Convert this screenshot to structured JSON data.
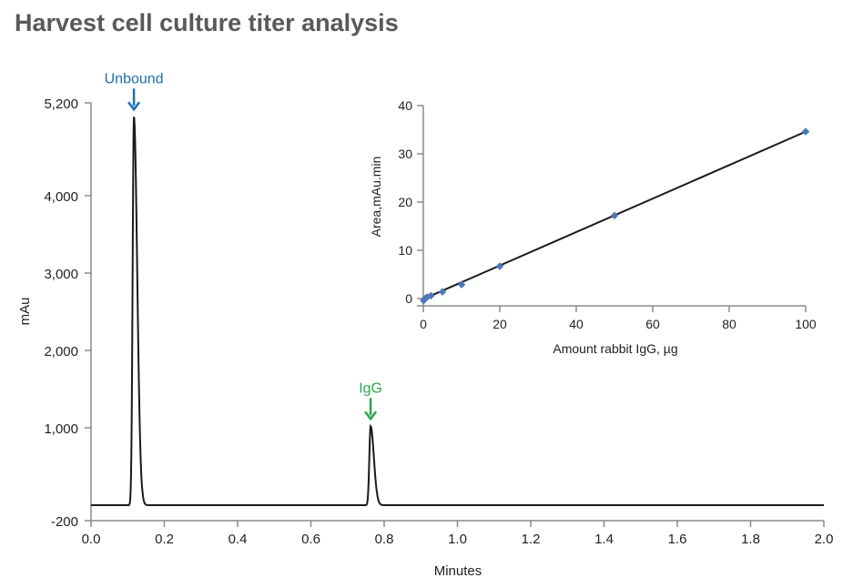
{
  "title": "Harvest cell culture titer analysis",
  "colors": {
    "unbound": "#1f6eb5",
    "igg": "#2aa84a",
    "line": "#1a1a1a",
    "axis": "#8a8a8a",
    "point": "#4a78b8"
  },
  "chart_data": [
    {
      "type": "line",
      "title": "Harvest cell culture titer analysis",
      "xlabel": "Minutes",
      "ylabel": "mAu",
      "xlim": [
        0,
        2
      ],
      "ylim": [
        -200,
        5200
      ],
      "xticks": [
        "0.0",
        "0.2",
        "0.4",
        "0.6",
        "0.8",
        "1.0",
        "1.2",
        "1.4",
        "1.6",
        "1.8",
        "2.0"
      ],
      "xtick_values": [
        0,
        0.2,
        0.4,
        0.6,
        0.8,
        1.0,
        1.2,
        1.4,
        1.6,
        1.8,
        2.0
      ],
      "yticks": [
        "-200",
        "1,000",
        "2,000",
        "3,000",
        "4,000",
        "5,200"
      ],
      "ytick_values": [
        -200,
        1000,
        2000,
        3000,
        4000,
        5200
      ],
      "baseline": 0,
      "peaks": [
        {
          "label": "Unbound",
          "time": 0.117,
          "height": 5020
        },
        {
          "label": "IgG",
          "time": 0.763,
          "height": 1020
        }
      ],
      "annotations": [
        "Unbound",
        "IgG"
      ]
    },
    {
      "type": "scatter",
      "xlabel": "Amount rabbit IgG, µg",
      "ylabel": "Area,mAu.min",
      "xlim": [
        0,
        100
      ],
      "ylim": [
        0,
        40
      ],
      "xticks": [
        "0",
        "20",
        "40",
        "60",
        "80",
        "100"
      ],
      "xtick_values": [
        0,
        20,
        40,
        60,
        80,
        100
      ],
      "yticks": [
        "0",
        "10",
        "20",
        "30",
        "40"
      ],
      "ytick_values": [
        0,
        10,
        20,
        30,
        40
      ],
      "x": [
        0.1,
        0.5,
        1,
        2,
        5,
        10,
        20,
        50,
        100
      ],
      "y": [
        -0.4,
        0,
        0.3,
        0.6,
        1.4,
        2.9,
        6.7,
        17.2,
        34.6
      ],
      "fit": {
        "slope": 0.347,
        "intercept": -0.1
      }
    }
  ]
}
